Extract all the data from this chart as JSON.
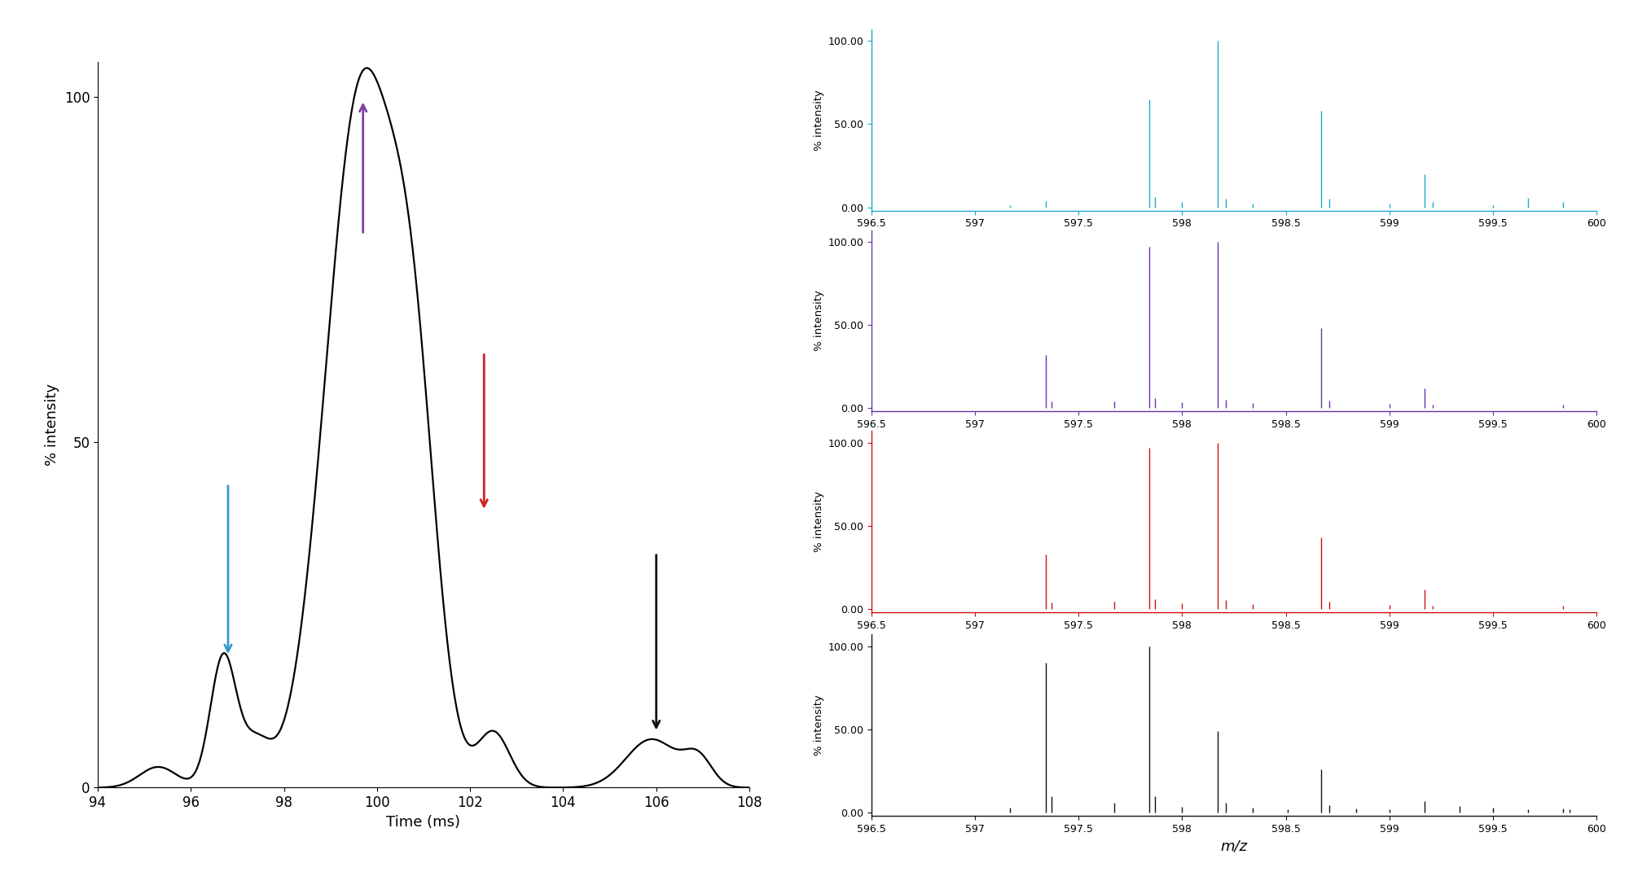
{
  "mobilogram": {
    "xlim": [
      94,
      108
    ],
    "ylim": [
      0,
      105
    ],
    "xlabel": "Time (ms)",
    "ylabel": "% intensity",
    "yticks": [
      0,
      50,
      100
    ],
    "xticks": [
      94,
      96,
      98,
      100,
      102,
      104,
      106,
      108
    ]
  },
  "arrows": [
    {
      "x": 96.8,
      "color": "#3399cc",
      "y_tip": 19,
      "y_tail": 44
    },
    {
      "x": 99.7,
      "color": "#7B3FA0",
      "y_tip": 99.5,
      "y_tail": 80
    },
    {
      "x": 102.3,
      "color": "#CC2222",
      "y_tip": 40,
      "y_tail": 63
    },
    {
      "x": 106.0,
      "color": "#111111",
      "y_tip": 8,
      "y_tail": 34
    }
  ],
  "spectra": [
    {
      "color": "#1AABCC",
      "peaks": [
        {
          "mz": 597.17,
          "intensity": 1.5
        },
        {
          "mz": 597.34,
          "intensity": 3.5
        },
        {
          "mz": 597.84,
          "intensity": 65.0
        },
        {
          "mz": 597.87,
          "intensity": 6.0
        },
        {
          "mz": 598.0,
          "intensity": 3.0
        },
        {
          "mz": 598.17,
          "intensity": 100.0
        },
        {
          "mz": 598.21,
          "intensity": 5.0
        },
        {
          "mz": 598.34,
          "intensity": 2.5
        },
        {
          "mz": 598.67,
          "intensity": 58.0
        },
        {
          "mz": 598.71,
          "intensity": 5.0
        },
        {
          "mz": 599.0,
          "intensity": 2.5
        },
        {
          "mz": 599.17,
          "intensity": 20.0
        },
        {
          "mz": 599.21,
          "intensity": 3.0
        },
        {
          "mz": 599.5,
          "intensity": 1.5
        },
        {
          "mz": 599.67,
          "intensity": 5.5
        },
        {
          "mz": 599.84,
          "intensity": 3.0
        }
      ]
    },
    {
      "color": "#6633AA",
      "peaks": [
        {
          "mz": 597.34,
          "intensity": 32.0
        },
        {
          "mz": 597.37,
          "intensity": 4.0
        },
        {
          "mz": 597.67,
          "intensity": 4.0
        },
        {
          "mz": 597.84,
          "intensity": 97.0
        },
        {
          "mz": 597.87,
          "intensity": 6.0
        },
        {
          "mz": 598.0,
          "intensity": 3.5
        },
        {
          "mz": 598.17,
          "intensity": 100.0
        },
        {
          "mz": 598.21,
          "intensity": 5.0
        },
        {
          "mz": 598.34,
          "intensity": 3.0
        },
        {
          "mz": 598.67,
          "intensity": 48.0
        },
        {
          "mz": 598.71,
          "intensity": 4.5
        },
        {
          "mz": 599.0,
          "intensity": 2.5
        },
        {
          "mz": 599.17,
          "intensity": 12.0
        },
        {
          "mz": 599.21,
          "intensity": 2.0
        },
        {
          "mz": 599.84,
          "intensity": 2.0
        }
      ]
    },
    {
      "color": "#CC1111",
      "peaks": [
        {
          "mz": 597.34,
          "intensity": 33.0
        },
        {
          "mz": 597.37,
          "intensity": 4.0
        },
        {
          "mz": 597.67,
          "intensity": 4.5
        },
        {
          "mz": 597.84,
          "intensity": 97.0
        },
        {
          "mz": 597.87,
          "intensity": 6.0
        },
        {
          "mz": 598.0,
          "intensity": 3.5
        },
        {
          "mz": 598.17,
          "intensity": 100.0
        },
        {
          "mz": 598.21,
          "intensity": 5.5
        },
        {
          "mz": 598.34,
          "intensity": 3.0
        },
        {
          "mz": 598.67,
          "intensity": 43.0
        },
        {
          "mz": 598.71,
          "intensity": 4.5
        },
        {
          "mz": 599.0,
          "intensity": 2.5
        },
        {
          "mz": 599.17,
          "intensity": 12.0
        },
        {
          "mz": 599.21,
          "intensity": 2.0
        },
        {
          "mz": 599.84,
          "intensity": 2.0
        }
      ]
    },
    {
      "color": "#111111",
      "peaks": [
        {
          "mz": 597.17,
          "intensity": 3.0
        },
        {
          "mz": 597.34,
          "intensity": 90.0
        },
        {
          "mz": 597.37,
          "intensity": 10.0
        },
        {
          "mz": 597.67,
          "intensity": 6.0
        },
        {
          "mz": 597.84,
          "intensity": 100.0
        },
        {
          "mz": 597.87,
          "intensity": 10.0
        },
        {
          "mz": 598.0,
          "intensity": 3.5
        },
        {
          "mz": 598.17,
          "intensity": 49.0
        },
        {
          "mz": 598.21,
          "intensity": 6.0
        },
        {
          "mz": 598.34,
          "intensity": 3.0
        },
        {
          "mz": 598.51,
          "intensity": 2.0
        },
        {
          "mz": 598.67,
          "intensity": 26.0
        },
        {
          "mz": 598.71,
          "intensity": 4.5
        },
        {
          "mz": 598.84,
          "intensity": 2.5
        },
        {
          "mz": 599.0,
          "intensity": 2.0
        },
        {
          "mz": 599.17,
          "intensity": 7.0
        },
        {
          "mz": 599.34,
          "intensity": 4.0
        },
        {
          "mz": 599.5,
          "intensity": 3.0
        },
        {
          "mz": 599.67,
          "intensity": 2.0
        },
        {
          "mz": 599.84,
          "intensity": 2.5
        },
        {
          "mz": 599.87,
          "intensity": 2.0
        }
      ]
    }
  ],
  "spectra_xlim": [
    596.5,
    600
  ],
  "spectra_ylim": [
    -2,
    107
  ],
  "spectra_yticks": [
    0.0,
    50.0,
    100.0
  ],
  "spectra_xticks": [
    596.5,
    597.0,
    597.5,
    598.0,
    598.5,
    599.0,
    599.5,
    600.0
  ],
  "spectra_xlabel": "m/z",
  "spectra_ylabel": "% intensity"
}
